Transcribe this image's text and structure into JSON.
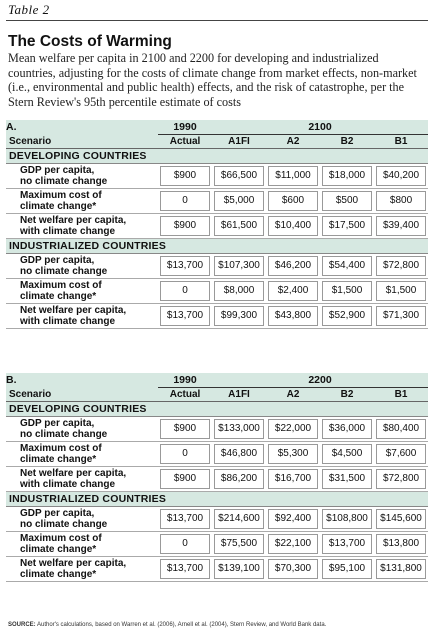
{
  "table_label": "Table 2",
  "title": "The Costs of Warming",
  "description": "Mean welfare per capita in 2100 and 2200 for developing and industrialized countries, adjusting for the costs of climate change from market effects, non-market (i.e., environmental and public health) effects, and the risk of catastrophe, per the Stern Review's 95th percentile estimate of costs",
  "columns": [
    "Actual",
    "A1FI",
    "A2",
    "B2",
    "B1"
  ],
  "scenario_label": "Scenario",
  "panels": [
    {
      "letter": "A.",
      "base_year": "1990",
      "proj_year": "2100",
      "sections": [
        {
          "name": "DEVELOPING COUNTRIES",
          "rows": [
            {
              "label": [
                "GDP per capita,",
                "no climate change"
              ],
              "values": [
                "$900",
                "$66,500",
                "$11,000",
                "$18,000",
                "$40,200"
              ]
            },
            {
              "label": [
                "Maximum cost of",
                "climate change*"
              ],
              "values": [
                "0",
                "$5,000",
                "$600",
                "$500",
                "$800"
              ]
            },
            {
              "label": [
                "Net welfare per capita,",
                "with climate change"
              ],
              "values": [
                "$900",
                "$61,500",
                "$10,400",
                "$17,500",
                "$39,400"
              ]
            }
          ]
        },
        {
          "name": "INDUSTRIALIZED COUNTRIES",
          "rows": [
            {
              "label": [
                "GDP per capita,",
                "no climate change"
              ],
              "values": [
                "$13,700",
                "$107,300",
                "$46,200",
                "$54,400",
                "$72,800"
              ]
            },
            {
              "label": [
                "Maximum cost of",
                "climate change*"
              ],
              "values": [
                "0",
                "$8,000",
                "$2,400",
                "$1,500",
                "$1,500"
              ]
            },
            {
              "label": [
                "Net welfare per capita,",
                "with climate change"
              ],
              "values": [
                "$13,700",
                "$99,300",
                "$43,800",
                "$52,900",
                "$71,300"
              ]
            }
          ]
        }
      ]
    },
    {
      "letter": "B.",
      "base_year": "1990",
      "proj_year": "2200",
      "sections": [
        {
          "name": "DEVELOPING COUNTRIES",
          "rows": [
            {
              "label": [
                "GDP per capita,",
                "no climate change"
              ],
              "values": [
                "$900",
                "$133,000",
                "$22,000",
                "$36,000",
                "$80,400"
              ]
            },
            {
              "label": [
                "Maximum cost of",
                "climate change*"
              ],
              "values": [
                "0",
                "$46,800",
                "$5,300",
                "$4,500",
                "$7,600"
              ]
            },
            {
              "label": [
                "Net welfare per capita,",
                "with climate change"
              ],
              "values": [
                "$900",
                "$86,200",
                "$16,700",
                "$31,500",
                "$72,800"
              ]
            }
          ]
        },
        {
          "name": "INDUSTRIALIZED COUNTRIES",
          "rows": [
            {
              "label": [
                "GDP per capita,",
                "no climate change"
              ],
              "values": [
                "$13,700",
                "$214,600",
                "$92,400",
                "$108,800",
                "$145,600"
              ]
            },
            {
              "label": [
                "Maximum cost of",
                "climate change*"
              ],
              "values": [
                "0",
                "$75,500",
                "$22,100",
                "$13,700",
                "$13,800"
              ]
            },
            {
              "label": [
                "Net welfare per capita,",
                "climate change*"
              ],
              "values": [
                "$13,700",
                "$139,100",
                "$70,300",
                "$95,100",
                "$131,800"
              ]
            }
          ]
        }
      ]
    }
  ],
  "source": {
    "prefix": "SOURCE:",
    "text": "Author's calculations, based on Warren et al. (2006), Arnell et al. (2004), Stern Review, and World Bank data."
  }
}
